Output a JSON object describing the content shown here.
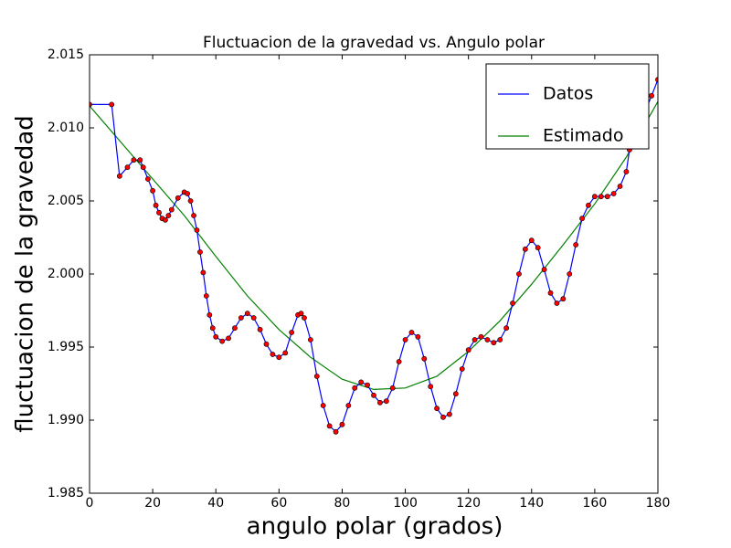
{
  "chart_data": {
    "type": "line",
    "title": "Fluctuacion de la gravedad vs. Angulo polar",
    "x_label": "angulo polar (grados)",
    "y_label": "fluctuacion de la gravedad",
    "xlim": [
      0,
      180
    ],
    "xticks": [
      0,
      20,
      40,
      60,
      80,
      100,
      120,
      140,
      160,
      180
    ],
    "ylim": [
      1.985,
      2.015
    ],
    "yticks": [
      1.985,
      {
        "value": 1.99,
        "label": "1.990"
      },
      1.995,
      {
        "value": 2,
        "label": "2.000"
      },
      2.005,
      {
        "value": 2.01,
        "label": "2.010"
      },
      2.015
    ],
    "legend": "upper right",
    "series": [
      {
        "name": "Datos",
        "color": "#0000ff",
        "marker_color": "#ff0000",
        "x": [
          0,
          7,
          9.5,
          12,
          14,
          16,
          17,
          18.5,
          20,
          21,
          22,
          23,
          24,
          25,
          26,
          28,
          30,
          31,
          32,
          33,
          34,
          35,
          36,
          37,
          38,
          39,
          40,
          42,
          44,
          46,
          48,
          50,
          52,
          54,
          56,
          58,
          60,
          62,
          64,
          66,
          67,
          68,
          70,
          72,
          74,
          76,
          78,
          80,
          82,
          84,
          86,
          88,
          90,
          92,
          94,
          96,
          98,
          100,
          102,
          104,
          106,
          108,
          110,
          112,
          114,
          116,
          118,
          120,
          122,
          124,
          126,
          128,
          130,
          132,
          134,
          136,
          138,
          140,
          142,
          144,
          146,
          148,
          150,
          152,
          154,
          156,
          158,
          160,
          162,
          164,
          166,
          168,
          170,
          171,
          172,
          178,
          180
        ],
        "values": [
          2.0116,
          2.0116,
          2.0067,
          2.0073,
          2.0078,
          2.0078,
          2.0073,
          2.0065,
          2.0057,
          2.0047,
          2.0042,
          2.0038,
          2.0037,
          2.004,
          2.0044,
          2.0052,
          2.0056,
          2.0055,
          2.005,
          2.004,
          2.003,
          2.0015,
          2.0001,
          1.9985,
          1.9972,
          1.9963,
          1.9957,
          1.9954,
          1.9956,
          1.9963,
          1.997,
          1.9973,
          1.997,
          1.9962,
          1.9952,
          1.9945,
          1.9943,
          1.9946,
          1.996,
          1.9972,
          1.9973,
          1.997,
          1.9955,
          1.993,
          1.991,
          1.9896,
          1.9892,
          1.9897,
          1.991,
          1.9922,
          1.9926,
          1.9924,
          1.9917,
          1.9912,
          1.9913,
          1.9922,
          1.994,
          1.9955,
          1.996,
          1.9957,
          1.9942,
          1.9923,
          1.9908,
          1.9902,
          1.9904,
          1.9918,
          1.9935,
          1.9948,
          1.9955,
          1.9957,
          1.9955,
          1.9953,
          1.9955,
          1.9963,
          1.998,
          2.0,
          2.0017,
          2.0023,
          2.0018,
          2.0003,
          1.9987,
          1.998,
          1.9983,
          2.0,
          2.002,
          2.0038,
          2.0047,
          2.0053,
          2.0053,
          2.0053,
          2.0055,
          2.006,
          2.007,
          2.0085,
          2.009,
          2.0122,
          2.0133
        ]
      },
      {
        "name": "Estimado",
        "color": "#008000",
        "x": [
          0,
          10,
          20,
          30,
          40,
          50,
          60,
          70,
          80,
          90,
          100,
          110,
          120,
          130,
          140,
          150,
          160,
          170,
          180
        ],
        "values": [
          2.0115,
          2.009,
          2.0065,
          2.004,
          2.0012,
          1.9985,
          1.9962,
          1.9943,
          1.9928,
          1.9921,
          1.9922,
          1.993,
          1.9947,
          1.9968,
          1.9993,
          2.002,
          2.0048,
          2.008,
          2.0118
        ]
      }
    ]
  }
}
